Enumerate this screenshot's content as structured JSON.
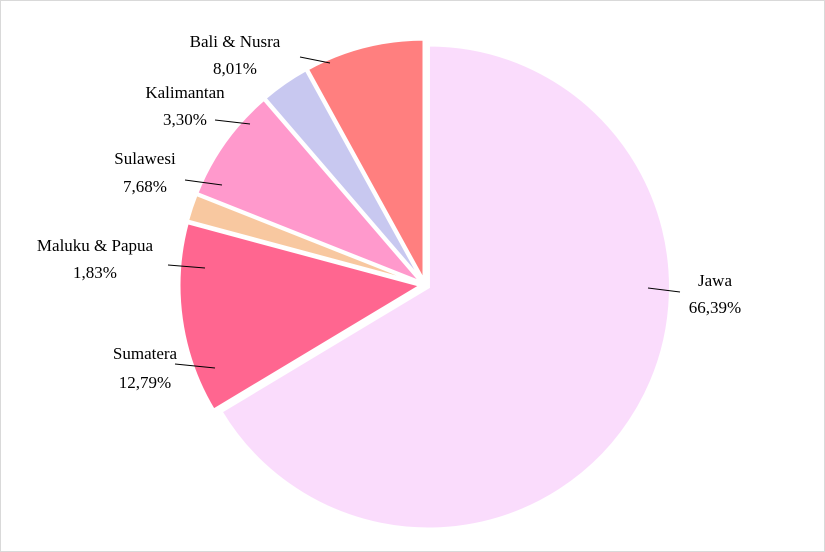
{
  "chart_data": {
    "type": "pie",
    "categories": [
      "Jawa",
      "Sumatera",
      "Maluku & Papua",
      "Sulawesi",
      "Kalimantan",
      "Bali & Nusra"
    ],
    "values": [
      66.39,
      12.79,
      1.83,
      7.68,
      3.3,
      8.01
    ],
    "value_labels": [
      "66,39%",
      "12,79%",
      "1,83%",
      "7,68%",
      "3,30%",
      "8,01%"
    ],
    "colors": [
      "#fadcfc",
      "#ff6690",
      "#f8c8a0",
      "#ff99cc",
      "#c8c8f0",
      "#ff7f7f"
    ]
  }
}
